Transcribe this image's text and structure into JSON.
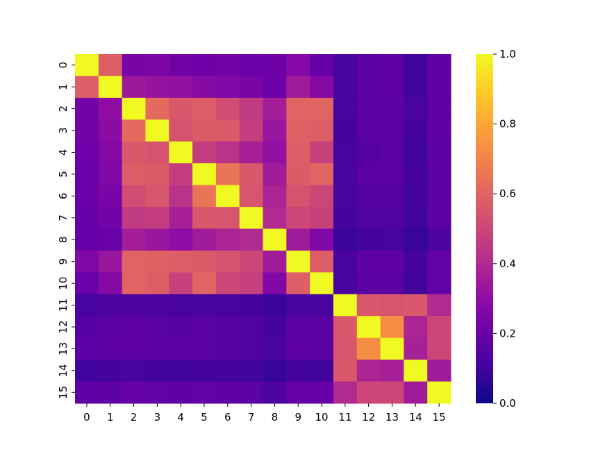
{
  "chart_data": {
    "type": "heatmap",
    "title": "",
    "xlabel": "",
    "ylabel": "",
    "x_categories": [
      "0",
      "1",
      "2",
      "3",
      "4",
      "5",
      "6",
      "7",
      "8",
      "9",
      "10",
      "11",
      "12",
      "13",
      "14",
      "15"
    ],
    "y_categories": [
      "0",
      "1",
      "2",
      "3",
      "4",
      "5",
      "6",
      "7",
      "8",
      "9",
      "10",
      "11",
      "12",
      "13",
      "14",
      "15"
    ],
    "colormap": "plasma",
    "vmin": 0.0,
    "vmax": 1.0,
    "colorbar_ticks": [
      "0.0",
      "0.2",
      "0.4",
      "0.6",
      "0.8",
      "1.0"
    ],
    "values": [
      [
        1.0,
        0.58,
        0.24,
        0.25,
        0.22,
        0.21,
        0.22,
        0.2,
        0.21,
        0.27,
        0.19,
        0.12,
        0.16,
        0.17,
        0.1,
        0.17
      ],
      [
        0.58,
        1.0,
        0.34,
        0.32,
        0.31,
        0.28,
        0.26,
        0.24,
        0.21,
        0.35,
        0.27,
        0.12,
        0.16,
        0.17,
        0.1,
        0.17
      ],
      [
        0.22,
        0.3,
        1.0,
        0.62,
        0.56,
        0.58,
        0.52,
        0.46,
        0.36,
        0.6,
        0.6,
        0.12,
        0.16,
        0.16,
        0.12,
        0.17
      ],
      [
        0.22,
        0.29,
        0.62,
        1.0,
        0.54,
        0.57,
        0.57,
        0.47,
        0.33,
        0.59,
        0.58,
        0.11,
        0.16,
        0.16,
        0.11,
        0.17
      ],
      [
        0.21,
        0.27,
        0.56,
        0.54,
        1.0,
        0.47,
        0.43,
        0.37,
        0.31,
        0.58,
        0.48,
        0.12,
        0.15,
        0.16,
        0.1,
        0.16
      ],
      [
        0.2,
        0.26,
        0.58,
        0.57,
        0.47,
        1.0,
        0.65,
        0.56,
        0.35,
        0.57,
        0.6,
        0.12,
        0.16,
        0.16,
        0.11,
        0.16
      ],
      [
        0.2,
        0.24,
        0.52,
        0.55,
        0.43,
        0.65,
        1.0,
        0.55,
        0.38,
        0.54,
        0.5,
        0.12,
        0.15,
        0.15,
        0.11,
        0.16
      ],
      [
        0.19,
        0.22,
        0.46,
        0.47,
        0.37,
        0.56,
        0.55,
        1.0,
        0.4,
        0.5,
        0.48,
        0.11,
        0.14,
        0.14,
        0.1,
        0.16
      ],
      [
        0.19,
        0.2,
        0.36,
        0.33,
        0.3,
        0.35,
        0.38,
        0.4,
        1.0,
        0.35,
        0.26,
        0.09,
        0.11,
        0.12,
        0.08,
        0.13
      ],
      [
        0.26,
        0.33,
        0.6,
        0.59,
        0.58,
        0.57,
        0.54,
        0.5,
        0.35,
        1.0,
        0.58,
        0.12,
        0.17,
        0.17,
        0.11,
        0.18
      ],
      [
        0.2,
        0.27,
        0.6,
        0.58,
        0.48,
        0.6,
        0.5,
        0.48,
        0.26,
        0.58,
        1.0,
        0.12,
        0.16,
        0.16,
        0.1,
        0.18
      ],
      [
        0.12,
        0.13,
        0.13,
        0.13,
        0.12,
        0.12,
        0.12,
        0.11,
        0.09,
        0.12,
        0.12,
        1.0,
        0.56,
        0.55,
        0.56,
        0.4
      ],
      [
        0.15,
        0.16,
        0.17,
        0.16,
        0.15,
        0.16,
        0.15,
        0.14,
        0.11,
        0.16,
        0.16,
        0.56,
        1.0,
        0.73,
        0.38,
        0.5
      ],
      [
        0.16,
        0.17,
        0.17,
        0.16,
        0.16,
        0.16,
        0.15,
        0.14,
        0.12,
        0.17,
        0.16,
        0.55,
        0.73,
        1.0,
        0.37,
        0.5
      ],
      [
        0.1,
        0.11,
        0.12,
        0.11,
        0.1,
        0.11,
        0.11,
        0.1,
        0.08,
        0.11,
        0.1,
        0.56,
        0.38,
        0.37,
        1.0,
        0.35
      ],
      [
        0.17,
        0.17,
        0.19,
        0.18,
        0.17,
        0.18,
        0.17,
        0.16,
        0.13,
        0.19,
        0.19,
        0.4,
        0.5,
        0.5,
        0.35,
        1.0
      ]
    ]
  }
}
